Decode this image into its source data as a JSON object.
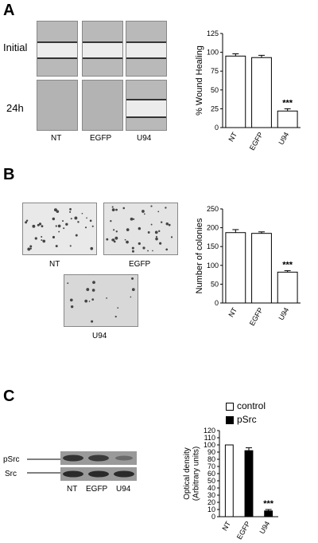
{
  "panels": {
    "a": {
      "letter": "A",
      "row_labels": [
        "Initial",
        "24h"
      ],
      "col_labels": [
        "NT",
        "EGFP",
        "U94"
      ]
    },
    "b": {
      "letter": "B",
      "labels": [
        "NT",
        "EGFP",
        "U94"
      ]
    },
    "c": {
      "letter": "C",
      "blot_labels": [
        "pSrc",
        "Src"
      ],
      "lane_labels": [
        "NT",
        "EGFP",
        "U94"
      ],
      "legend": [
        "control",
        "pSrc"
      ]
    }
  },
  "chart_data": [
    {
      "type": "bar",
      "panel": "A",
      "categories": [
        "NT",
        "EGFP",
        "U94"
      ],
      "values": [
        95,
        93,
        22
      ],
      "errors": [
        3,
        3,
        3
      ],
      "ylabel": "% Wound Healing",
      "ylim": [
        0,
        125
      ],
      "yticks": [
        0,
        25,
        50,
        75,
        100,
        125
      ],
      "significance": [
        "",
        "",
        "***"
      ],
      "bar_fill": "#ffffff"
    },
    {
      "type": "bar",
      "panel": "B",
      "categories": [
        "NT",
        "EGFP",
        "U94"
      ],
      "values": [
        187,
        185,
        82
      ],
      "errors": [
        8,
        4,
        4
      ],
      "ylabel": "Number of colonies",
      "ylim": [
        0,
        250
      ],
      "yticks": [
        0,
        50,
        100,
        150,
        200,
        250
      ],
      "significance": [
        "",
        "",
        "***"
      ],
      "bar_fill": "#ffffff"
    },
    {
      "type": "bar",
      "panel": "C",
      "categories": [
        "NT",
        "EGFP",
        "U94"
      ],
      "series": [
        {
          "name": "control",
          "values": [
            100,
            null,
            null
          ],
          "color": "#ffffff"
        },
        {
          "name": "pSrc",
          "values": [
            null,
            92,
            8
          ],
          "color": "#000000"
        }
      ],
      "errors": [
        0,
        4,
        2
      ],
      "ylabel": "Optical density\n(Arbitrary units)",
      "ylim": [
        0,
        120
      ],
      "yticks": [
        0,
        10,
        20,
        30,
        40,
        50,
        60,
        70,
        80,
        90,
        100,
        110,
        120
      ],
      "significance": [
        "",
        "",
        "***"
      ]
    }
  ]
}
